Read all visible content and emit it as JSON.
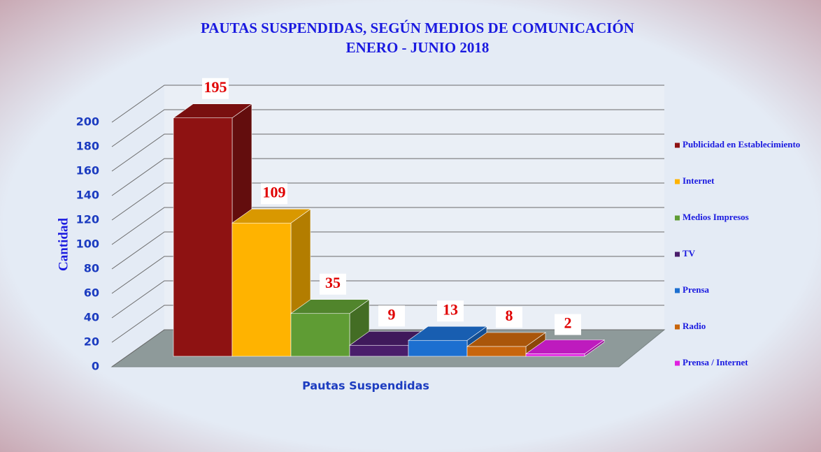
{
  "chart_data": {
    "type": "bar",
    "title": "PAUTAS SUSPENDIDAS, SEGÚN MEDIOS DE COMUNICACIÓN",
    "subtitle": "ENERO -  JUNIO 2018",
    "ylabel": "Cantidad",
    "xlabel": "Pautas Suspendidas",
    "ylim": [
      0,
      200
    ],
    "yticks": [
      0,
      20,
      40,
      60,
      80,
      100,
      120,
      140,
      160,
      180,
      200
    ],
    "grid": true,
    "legend": "right",
    "series": [
      {
        "name": "Publicidad en Establecimiento",
        "color": "#8e1212",
        "values": [
          195
        ]
      },
      {
        "name": "Internet",
        "color": "#ffb300",
        "values": [
          109
        ]
      },
      {
        "name": "Medios Impresos",
        "color": "#5f9c34",
        "values": [
          35
        ]
      },
      {
        "name": "TV",
        "color": "#4a1d6b",
        "values": [
          9
        ]
      },
      {
        "name": "Prensa",
        "color": "#1c6fd0",
        "values": [
          13
        ]
      },
      {
        "name": "Radio",
        "color": "#c8650c",
        "values": [
          8
        ]
      },
      {
        "name": "Prensa / Internet",
        "color": "#e020e0",
        "values": [
          2
        ]
      }
    ]
  }
}
